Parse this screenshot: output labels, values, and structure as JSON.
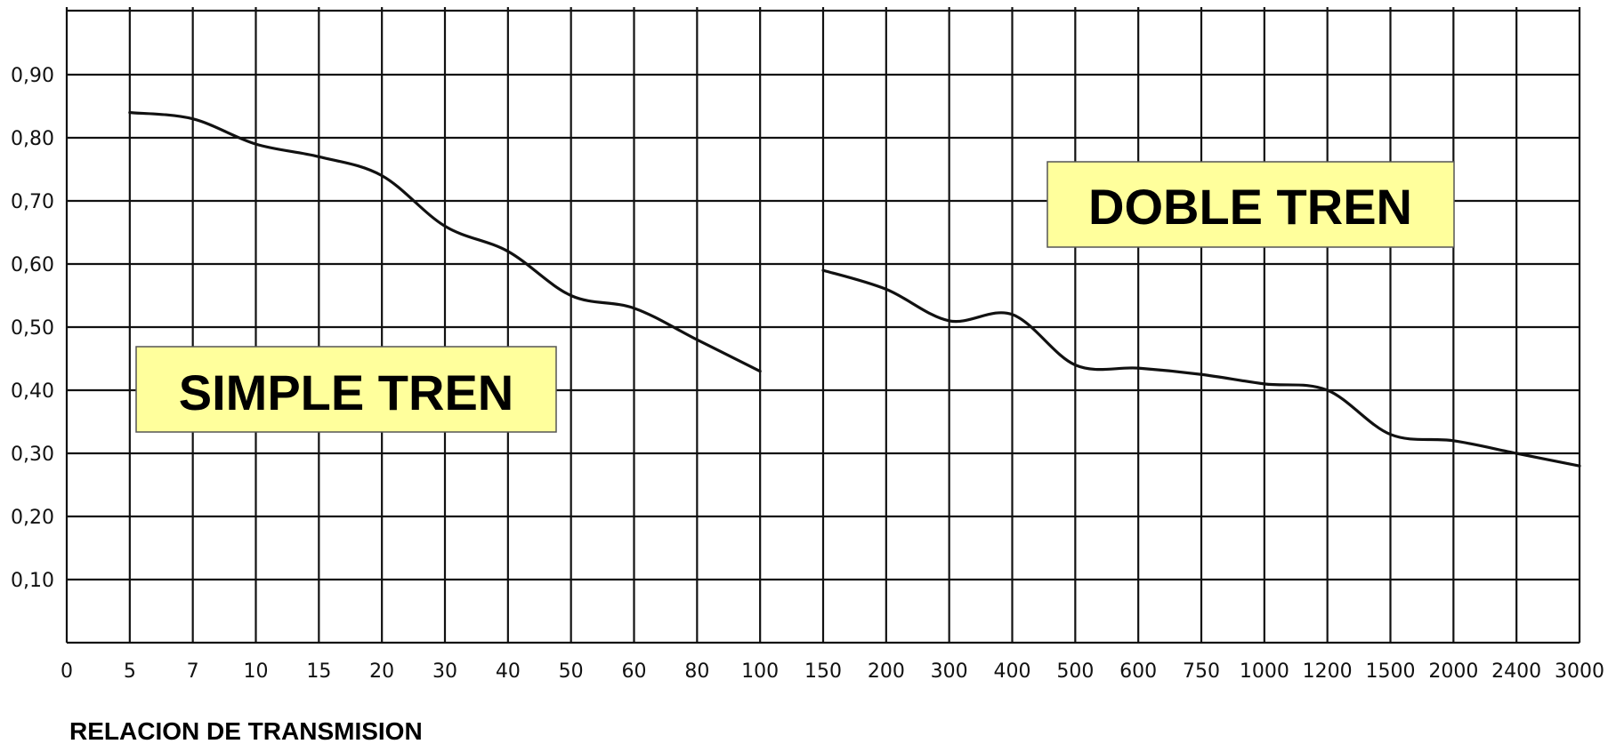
{
  "chart_data": {
    "type": "line",
    "title": "",
    "xlabel": "RELACION DE TRANSMISION",
    "ylabel": "",
    "categories": [
      "0",
      "5",
      "7",
      "10",
      "15",
      "20",
      "30",
      "40",
      "50",
      "60",
      "80",
      "100",
      "150",
      "200",
      "300",
      "400",
      "500",
      "600",
      "750",
      "1000",
      "1200",
      "1500",
      "2000",
      "2400",
      "3000"
    ],
    "y_ticks": [
      "0,10",
      "0,20",
      "0,30",
      "0,40",
      "0,50",
      "0,60",
      "0,70",
      "0,80",
      "0,90"
    ],
    "ylim": [
      0,
      1.0
    ],
    "grid": true,
    "annotations": [
      {
        "text": "SIMPLE TREN",
        "style": "yellow-box"
      },
      {
        "text": "DOBLE TREN",
        "style": "yellow-box"
      }
    ],
    "series": [
      {
        "x": [
          "5",
          "7",
          "10",
          "15",
          "20",
          "30",
          "40",
          "50",
          "60",
          "80",
          "100"
        ],
        "values": [
          0.84,
          0.83,
          0.79,
          0.77,
          0.74,
          0.66,
          0.62,
          0.55,
          0.53,
          0.48,
          0.43
        ]
      },
      {
        "x": [
          "150",
          "200",
          "300",
          "400",
          "500",
          "600",
          "750",
          "1000",
          "1200",
          "1500",
          "2000",
          "2400",
          "3000"
        ],
        "values": [
          0.59,
          0.56,
          0.51,
          0.52,
          0.44,
          0.435,
          0.425,
          0.41,
          0.4,
          0.33,
          0.32,
          0.3,
          0.28
        ]
      }
    ]
  }
}
